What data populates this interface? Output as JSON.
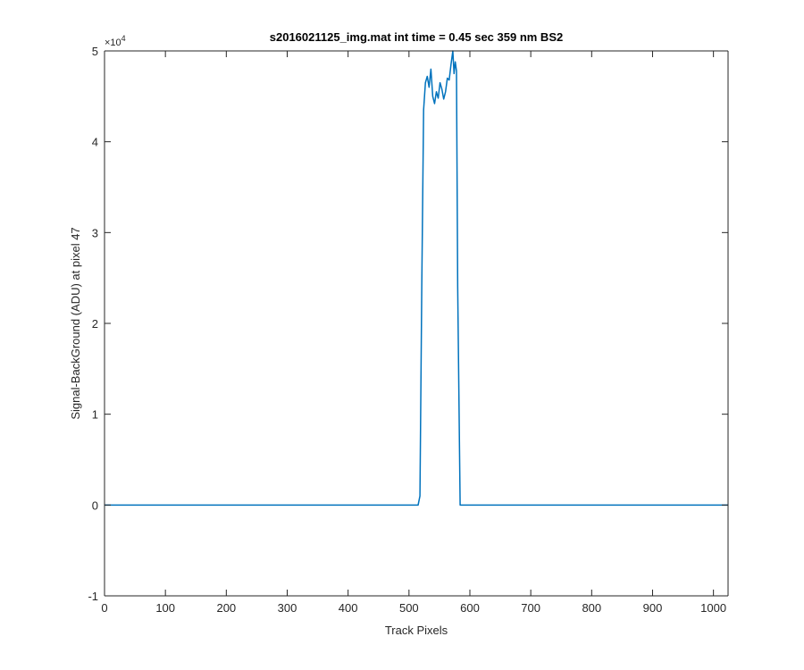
{
  "chart_data": {
    "type": "line",
    "title": "s2016021125_img.mat int time = 0.45 sec  359 nm BS2",
    "xlabel": "Track Pixels",
    "ylabel": "Signal-BackGround (ADU) at pixel 47",
    "xlim": [
      0,
      1024
    ],
    "ylim": [
      -10000,
      50000
    ],
    "x_ticks": [
      0,
      100,
      200,
      300,
      400,
      500,
      600,
      700,
      800,
      900,
      1000
    ],
    "x_tick_labels": [
      "0",
      "100",
      "200",
      "300",
      "400",
      "500",
      "600",
      "700",
      "800",
      "900",
      "1000"
    ],
    "y_ticks": [
      -10000,
      0,
      10000,
      20000,
      30000,
      40000,
      50000
    ],
    "y_tick_labels": [
      "-1",
      "0",
      "1",
      "2",
      "3",
      "4",
      "5"
    ],
    "y_exponent_base": "×10",
    "y_exponent_power": "4",
    "grid": false,
    "legend": "none",
    "series": [
      {
        "color": "#0072BD",
        "x": [
          0,
          100,
          200,
          300,
          400,
          500,
          515,
          518,
          521,
          524,
          527,
          530,
          533,
          536,
          539,
          542,
          545,
          548,
          551,
          554,
          557,
          560,
          563,
          566,
          569,
          572,
          574,
          576,
          578,
          580,
          584,
          590,
          700,
          800,
          900,
          1000,
          1024
        ],
        "y": [
          0,
          0,
          0,
          0,
          0,
          0,
          0,
          1000,
          24000,
          43500,
          46500,
          47200,
          46000,
          48000,
          45000,
          44200,
          45500,
          44800,
          46500,
          45800,
          44700,
          45500,
          47000,
          46800,
          48500,
          50000,
          47500,
          48800,
          47800,
          24000,
          0,
          0,
          0,
          0,
          0,
          0,
          0
        ]
      }
    ]
  }
}
